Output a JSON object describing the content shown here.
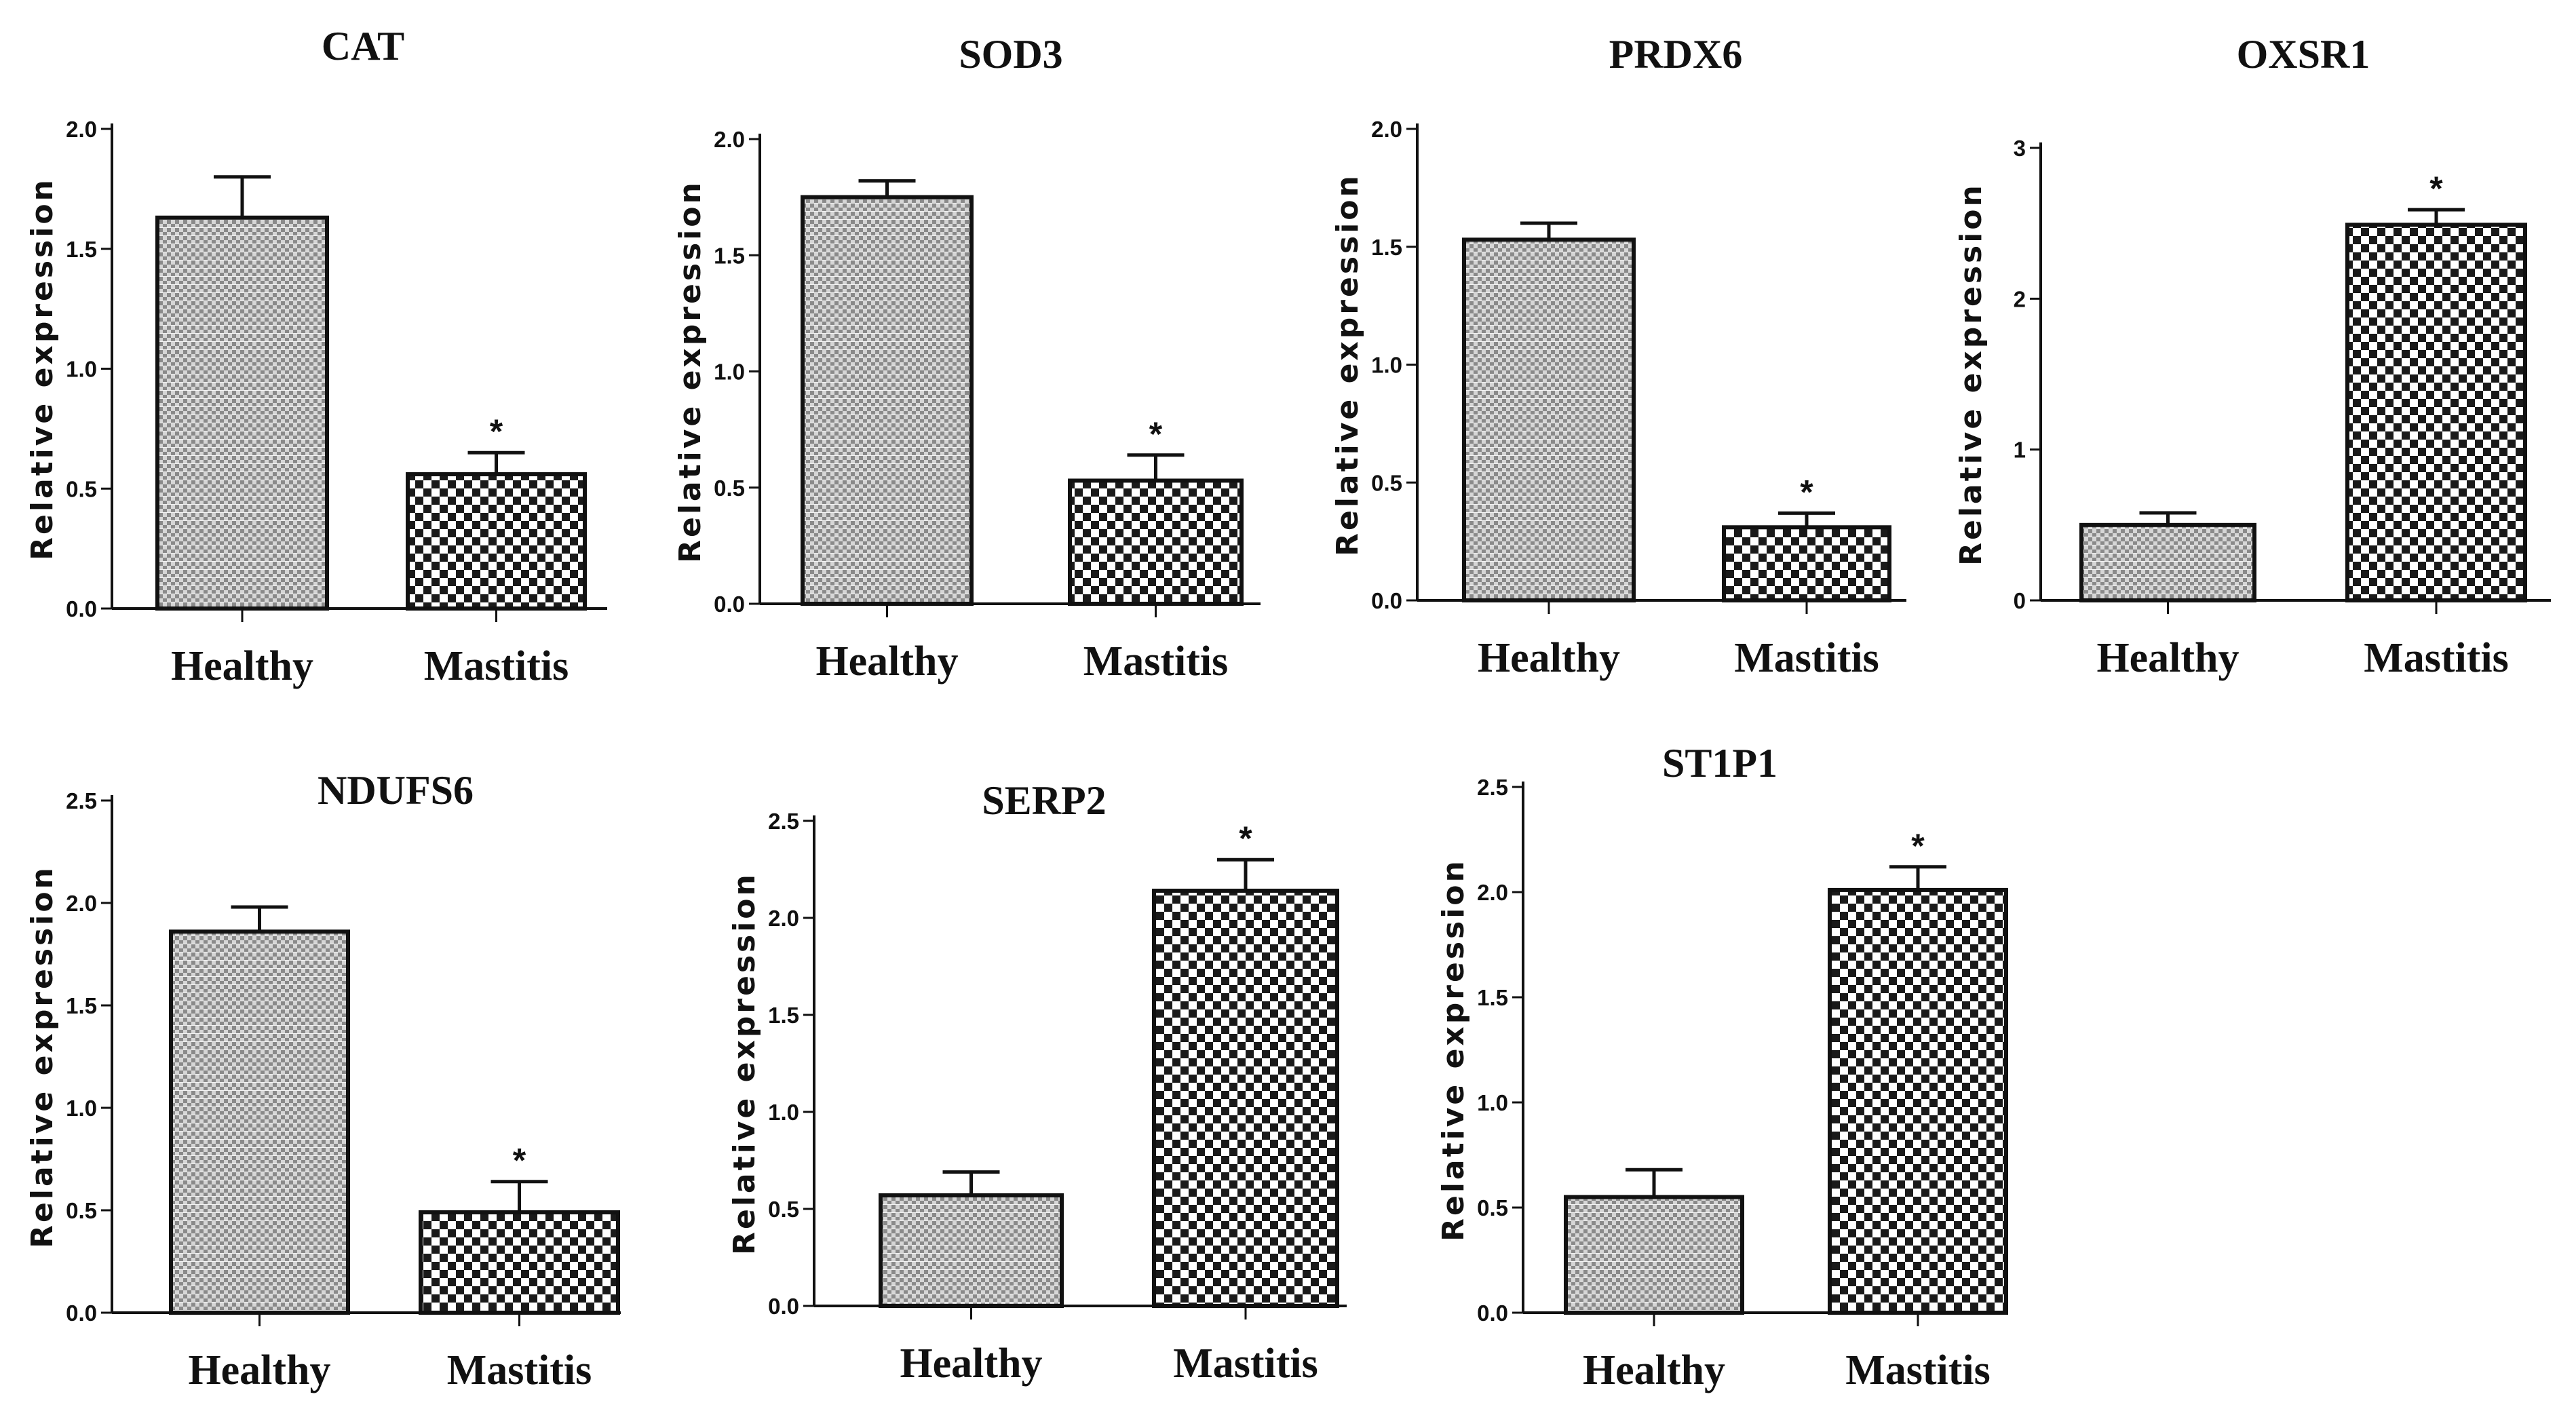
{
  "chart_data": [
    {
      "type": "bar",
      "title": "CAT",
      "ylabel": "Relative expression",
      "xlabel": "",
      "ylim": [
        0,
        2.0
      ],
      "yticks": [
        "0.0",
        "0.5",
        "1.0",
        "1.5",
        "2.0"
      ],
      "categories": [
        "Healthy",
        "Mastitis"
      ],
      "values": [
        1.63,
        0.56
      ],
      "errors": [
        0.17,
        0.09
      ],
      "significance": [
        "",
        "*"
      ]
    },
    {
      "type": "bar",
      "title": "SOD3",
      "ylabel": "Relative expression",
      "xlabel": "",
      "ylim": [
        0,
        2.0
      ],
      "yticks": [
        "0.0",
        "0.5",
        "1.0",
        "1.5",
        "2.0"
      ],
      "categories": [
        "Healthy",
        "Mastitis"
      ],
      "values": [
        1.75,
        0.53
      ],
      "errors": [
        0.07,
        0.11
      ],
      "significance": [
        "",
        "*"
      ]
    },
    {
      "type": "bar",
      "title": "PRDX6",
      "ylabel": "Relative expression",
      "xlabel": "",
      "ylim": [
        0,
        2.0
      ],
      "yticks": [
        "0.0",
        "0.5",
        "1.0",
        "1.5",
        "2.0"
      ],
      "categories": [
        "Healthy",
        "Mastitis"
      ],
      "values": [
        1.53,
        0.31
      ],
      "errors": [
        0.07,
        0.06
      ],
      "significance": [
        "",
        "*"
      ]
    },
    {
      "type": "bar",
      "title": "OXSR1",
      "ylabel": "Relative expression",
      "xlabel": "",
      "ylim": [
        0,
        3
      ],
      "yticks": [
        "0",
        "1",
        "2",
        "3"
      ],
      "categories": [
        "Healthy",
        "Mastitis"
      ],
      "values": [
        0.5,
        2.49
      ],
      "errors": [
        0.08,
        0.1
      ],
      "significance": [
        "",
        "*"
      ]
    },
    {
      "type": "bar",
      "title": "NDUFS6",
      "ylabel": "Relative expression",
      "xlabel": "",
      "ylim": [
        0,
        2.5
      ],
      "yticks": [
        "0.0",
        "0.5",
        "1.0",
        "1.5",
        "2.0",
        "2.5"
      ],
      "categories": [
        "Healthy",
        "Mastitis"
      ],
      "values": [
        1.86,
        0.49
      ],
      "errors": [
        0.12,
        0.15
      ],
      "significance": [
        "",
        "*"
      ]
    },
    {
      "type": "bar",
      "title": "SERP2",
      "ylabel": "Relative expression",
      "xlabel": "",
      "ylim": [
        0,
        2.5
      ],
      "yticks": [
        "0.0",
        "0.5",
        "1.0",
        "1.5",
        "2.0",
        "2.5"
      ],
      "categories": [
        "Healthy",
        "Mastitis"
      ],
      "values": [
        0.57,
        2.14
      ],
      "errors": [
        0.12,
        0.16
      ],
      "significance": [
        "",
        "*"
      ]
    },
    {
      "type": "bar",
      "title": "ST1P1",
      "ylabel": "Relative expression",
      "xlabel": "",
      "ylim": [
        0,
        2.5
      ],
      "yticks": [
        "0.0",
        "0.5",
        "1.0",
        "1.5",
        "2.0",
        "2.5"
      ],
      "categories": [
        "Healthy",
        "Mastitis"
      ],
      "values": [
        0.55,
        2.01
      ],
      "errors": [
        0.13,
        0.11
      ],
      "significance": [
        "",
        "*"
      ]
    }
  ]
}
